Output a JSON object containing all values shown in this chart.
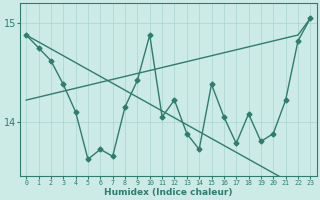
{
  "xlabel": "Humidex (Indice chaleur)",
  "x_values": [
    0,
    1,
    2,
    3,
    4,
    5,
    6,
    7,
    8,
    9,
    10,
    11,
    12,
    13,
    14,
    15,
    16,
    17,
    18,
    19,
    20,
    21,
    22,
    23
  ],
  "main_series": [
    14.88,
    14.75,
    14.62,
    14.38,
    14.1,
    13.62,
    13.72,
    13.65,
    14.15,
    14.42,
    14.88,
    14.05,
    14.22,
    13.88,
    13.72,
    14.38,
    14.05,
    13.78,
    14.08,
    13.8,
    13.88,
    14.22,
    14.82,
    15.05
  ],
  "trend1": [
    14.88,
    14.81,
    14.74,
    14.67,
    14.6,
    14.53,
    14.46,
    14.39,
    14.32,
    14.25,
    14.18,
    14.11,
    14.04,
    13.97,
    13.9,
    13.83,
    13.76,
    13.69,
    13.62,
    13.55,
    13.48,
    13.41,
    13.34,
    13.27
  ],
  "trend2": [
    14.22,
    14.25,
    14.28,
    14.31,
    14.34,
    14.37,
    14.4,
    14.43,
    14.46,
    14.49,
    14.52,
    14.55,
    14.58,
    14.61,
    14.64,
    14.67,
    14.7,
    14.73,
    14.76,
    14.79,
    14.82,
    14.85,
    14.88,
    15.05
  ],
  "line_color": "#2e7d6e",
  "bg_color": "#cceae6",
  "grid_color": "#aad4cf",
  "ylim_min": 13.45,
  "ylim_max": 15.2,
  "yticks": [
    14,
    15
  ],
  "marker": "D",
  "marker_size": 2.5,
  "line_width": 1.0
}
